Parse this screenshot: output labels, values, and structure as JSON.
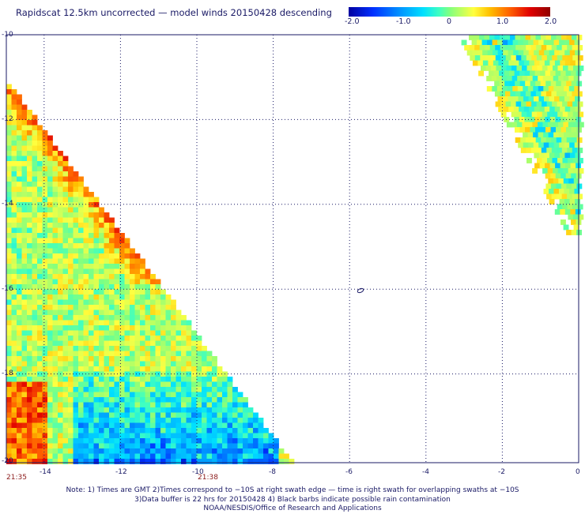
{
  "header": {
    "title": "Rapidscat 12.5km uncorrected — model winds 20150428 descending"
  },
  "colorbar": {
    "ticks": [
      "-2.0",
      "-1.0",
      "0",
      "1.0",
      "2.0"
    ],
    "range": [
      -2.0,
      2.0
    ]
  },
  "axes": {
    "lat_labels": [
      "-10",
      "-12",
      "-14",
      "-16",
      "-18",
      "-20"
    ],
    "lon_labels": [
      "-14",
      "-12",
      "-10",
      "-8",
      "-6",
      "-4",
      "-2",
      "0"
    ],
    "time_labels": [
      "21:35",
      "21:38"
    ]
  },
  "notes": {
    "line1": "Note: 1) Times are GMT 2)Times correspond to −10S at right swath edge — time is right swath for overlapping swaths at −10S",
    "line2": "3)Data buffer is 22 hrs for 20150428 4) Black barbs indicate possible rain contamination",
    "line3": "NOAA/NESDIS/Office of Research and Applications"
  },
  "land": {
    "contour_symbol": "island-contour-icon"
  }
}
